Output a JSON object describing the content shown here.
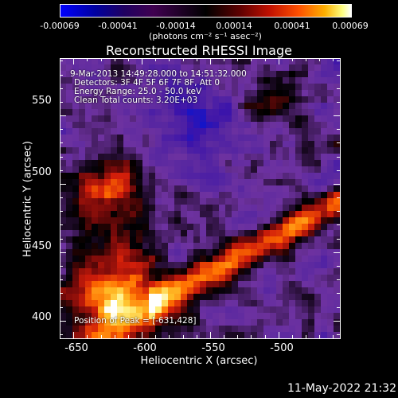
{
  "colorbar": {
    "ticks": [
      "-0.00069",
      "-0.00041",
      "-0.00014",
      "0.00014",
      "0.00041",
      "0.00069"
    ],
    "unit": "(photons cm⁻² s⁻¹ asec⁻²)"
  },
  "chart_data": {
    "type": "heatmap",
    "title": "Reconstructed RHESSI Image",
    "xlabel": "Heliocentric X (arcsec)",
    "ylabel": "Heliocentric Y (arcsec)",
    "xlim": [
      -660,
      -455
    ],
    "ylim": [
      387,
      592
    ],
    "x_ticks": [
      -650,
      -600,
      -550,
      -500
    ],
    "y_ticks": [
      400,
      450,
      500,
      550
    ],
    "value_range": [
      -0.00069,
      0.00069
    ],
    "colormap": "blue-black-red-yellow-white",
    "peak": [
      -631,
      428
    ],
    "annotations": [
      "9-Mar-2013 14:49:28.000 to 14:51:32.000",
      "Detectors: 3F 4F 5F 6F 7F 8F, Att 0",
      "Energy Range: 25.0 - 50.0 keV",
      "Clean    Total counts: 3.20E+03"
    ],
    "peak_label": "Position of Peak = [-631,428]"
  },
  "timestamp": "11-May-2022 21:32"
}
